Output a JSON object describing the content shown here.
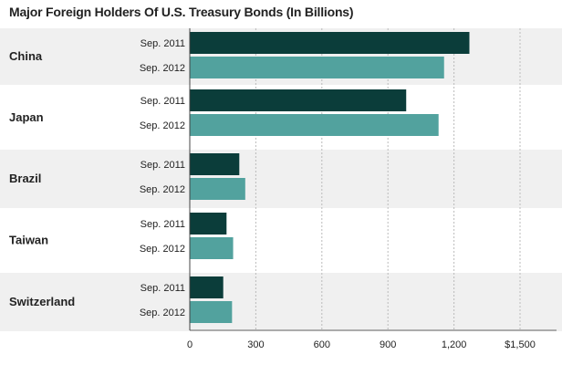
{
  "chart_data": {
    "type": "bar",
    "orientation": "horizontal",
    "title": "Major Foreign Holders Of U.S. Treasury Bonds (In Billions)",
    "categories": [
      "China",
      "Japan",
      "Brazil",
      "Taiwan",
      "Switzerland"
    ],
    "series": [
      {
        "name": "Sep. 2011",
        "values": [
          1270,
          983,
          225,
          167,
          152
        ],
        "color": "#0b3d3a"
      },
      {
        "name": "Sep. 2012",
        "values": [
          1155,
          1130,
          252,
          197,
          192
        ],
        "color": "#52a29e"
      }
    ],
    "xlim": [
      0,
      1500
    ],
    "ticks": [
      0,
      300,
      600,
      900,
      1200,
      1500
    ],
    "tick_labels": [
      "0",
      "300",
      "600",
      "900",
      "1,200",
      "$1,500"
    ],
    "grid": true,
    "colors": {
      "stripe": "#f0f0f0",
      "grid": "#bbbbbb"
    }
  }
}
